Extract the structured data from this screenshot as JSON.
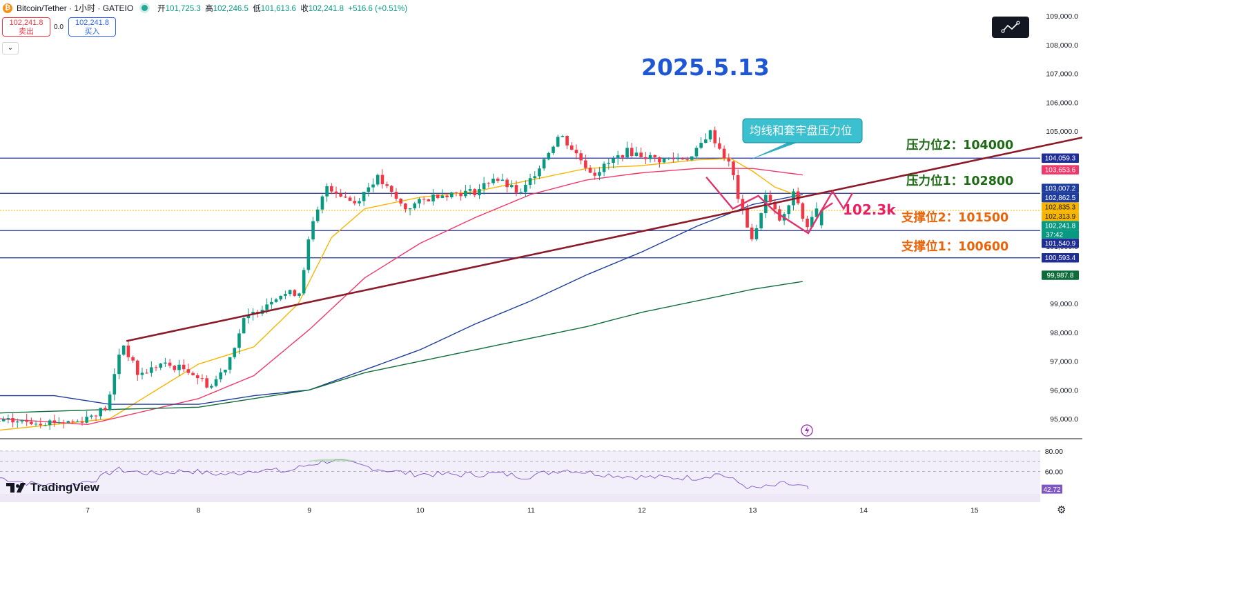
{
  "header": {
    "title": "Bitcoin/Tether · 1小时 · GATEIO",
    "open_label": "开",
    "open": "101,725.3",
    "high_label": "高",
    "high": "102,246.5",
    "low_label": "低",
    "low": "101,613.6",
    "close_label": "收",
    "close": "102,241.8",
    "change": "+516.6 (+0.51%)"
  },
  "trade": {
    "sell_price": "102,241.8",
    "sell_label": "卖出",
    "spread": "0.0",
    "buy_price": "102,241.8",
    "buy_label": "买入"
  },
  "collapse_icon": "chevron-down-icon",
  "drawing_tool_icon": "trend-line-icon",
  "brand": "TradingView",
  "colors": {
    "up": "#089981",
    "down": "#f23645",
    "ma_fast": "#f7b500",
    "ma_mid": "#f0386b",
    "ma_slow": "#1e3d9c",
    "ma_long": "#0e6b3b",
    "trendline": "#8b1a2a",
    "level_line": "#1f2d96",
    "rsi": "#7e57c2",
    "annotation_blue": "#1f56d6",
    "resistance_text": "#1e6b16",
    "support_text": "#e8650c",
    "target_text": "#e91e63"
  },
  "chart_data": {
    "type": "candlestick",
    "symbol": "Bitcoin/Tether",
    "interval": "1小时",
    "exchange": "GATEIO",
    "x_ticks": [
      "7",
      "8",
      "9",
      "10",
      "11",
      "12",
      "13",
      "14",
      "15"
    ],
    "y_ticks": [
      "95,000.0",
      "96,000.0",
      "97,000.0",
      "98,000.0",
      "99,000.0",
      "100,000.0",
      "101,000.0",
      "102,000.0",
      "103,000.0",
      "104,000.0",
      "105,000.0",
      "106,000.0",
      "107,000.0",
      "108,000.0",
      "109,000.0"
    ],
    "ylim": [
      94700,
      109500
    ],
    "xlim": [
      6.2,
      16.0
    ],
    "candle_anchors": [
      [
        6.2,
        94900
      ],
      [
        6.95,
        94900
      ],
      [
        7.22,
        95400
      ],
      [
        7.35,
        97700
      ],
      [
        7.5,
        96500
      ],
      [
        7.7,
        96900
      ],
      [
        7.95,
        96700
      ],
      [
        8.15,
        96100
      ],
      [
        8.3,
        96900
      ],
      [
        8.45,
        98400
      ],
      [
        8.75,
        99300
      ],
      [
        8.95,
        99400
      ],
      [
        9.05,
        101500
      ],
      [
        9.2,
        103100
      ],
      [
        9.45,
        102500
      ],
      [
        9.65,
        103400
      ],
      [
        9.9,
        102300
      ],
      [
        10.2,
        102800
      ],
      [
        10.55,
        102900
      ],
      [
        10.7,
        103400
      ],
      [
        10.95,
        102800
      ],
      [
        11.3,
        104900
      ],
      [
        11.6,
        103500
      ],
      [
        11.9,
        104300
      ],
      [
        12.2,
        104000
      ],
      [
        12.5,
        104100
      ],
      [
        12.65,
        105000
      ],
      [
        12.85,
        103700
      ],
      [
        12.92,
        102500
      ],
      [
        13.05,
        101100
      ],
      [
        13.15,
        102800
      ],
      [
        13.3,
        101800
      ],
      [
        13.42,
        102900
      ],
      [
        13.52,
        101600
      ],
      [
        13.62,
        102242
      ]
    ],
    "last_candle": {
      "x": 13.62,
      "open": 101725.3,
      "high": 102246.5,
      "low": 101613.6,
      "close": 102241.8
    },
    "moving_averages": [
      {
        "name": "ma_fast",
        "points": [
          [
            6.2,
            94600
          ],
          [
            7.2,
            95000
          ],
          [
            8.0,
            96900
          ],
          [
            8.5,
            97500
          ],
          [
            8.9,
            99000
          ],
          [
            9.2,
            101300
          ],
          [
            9.5,
            102300
          ],
          [
            10.0,
            102700
          ],
          [
            10.5,
            102900
          ],
          [
            11.0,
            103300
          ],
          [
            11.5,
            103700
          ],
          [
            12.0,
            103800
          ],
          [
            12.5,
            104000
          ],
          [
            12.8,
            104050
          ],
          [
            13.0,
            103600
          ],
          [
            13.2,
            103050
          ],
          [
            13.45,
            102700
          ],
          [
            13.5,
            102313
          ]
        ]
      },
      {
        "name": "ma_mid",
        "points": [
          [
            6.2,
            95000
          ],
          [
            7.0,
            94800
          ],
          [
            8.0,
            95700
          ],
          [
            8.5,
            96500
          ],
          [
            9.0,
            98100
          ],
          [
            9.5,
            99900
          ],
          [
            10.0,
            101100
          ],
          [
            10.5,
            102000
          ],
          [
            11.0,
            102800
          ],
          [
            11.5,
            103300
          ],
          [
            12.0,
            103550
          ],
          [
            12.5,
            103700
          ],
          [
            13.0,
            103700
          ],
          [
            13.5,
            103450
          ]
        ]
      },
      {
        "name": "ma_slow",
        "points": [
          [
            6.2,
            95800
          ],
          [
            6.7,
            95800
          ],
          [
            7.2,
            95500
          ],
          [
            8.0,
            95500
          ],
          [
            8.5,
            95800
          ],
          [
            9.0,
            96000
          ],
          [
            9.5,
            96700
          ],
          [
            10.0,
            97400
          ],
          [
            10.5,
            98300
          ],
          [
            11.0,
            99100
          ],
          [
            11.5,
            100000
          ],
          [
            12.0,
            100800
          ],
          [
            12.5,
            101700
          ],
          [
            13.0,
            102450
          ],
          [
            13.5,
            102830
          ]
        ]
      },
      {
        "name": "ma_long",
        "points": [
          [
            6.2,
            95200
          ],
          [
            7.0,
            95300
          ],
          [
            8.0,
            95400
          ],
          [
            8.5,
            95700
          ],
          [
            9.0,
            96000
          ],
          [
            9.5,
            96600
          ],
          [
            10.0,
            97000
          ],
          [
            10.5,
            97400
          ],
          [
            11.0,
            97800
          ],
          [
            11.5,
            98200
          ],
          [
            12.0,
            98700
          ],
          [
            12.5,
            99100
          ],
          [
            13.0,
            99500
          ],
          [
            13.5,
            99800
          ]
        ]
      }
    ],
    "trendline": [
      [
        7.35,
        97700
      ],
      [
        16.0,
        104800
      ]
    ],
    "horizontal_levels": [
      104059.3,
      102835.3,
      101540.9,
      100593.4
    ],
    "current_price_line": 102241.8,
    "zigzag_projection": [
      [
        12.58,
        103400
      ],
      [
        12.82,
        102300
      ],
      [
        13.05,
        102750
      ],
      [
        13.2,
        102200
      ],
      [
        13.5,
        101450
      ],
      [
        13.62,
        102242
      ],
      [
        13.72,
        102500
      ]
    ],
    "price_tags": [
      {
        "value": 104059.3,
        "text": "104,059.3",
        "bg": "#1f2d96"
      },
      {
        "value": 103653.6,
        "text": "103,653.6",
        "bg": "#f0386b"
      },
      {
        "value": 103007.2,
        "text": "103,007.2",
        "bg": "#1e3d9c"
      },
      {
        "value": 102862.5,
        "text": "102,862.5",
        "bg": "#1e3d9c"
      },
      {
        "value": 102835.3,
        "text": "102,835.3",
        "bg": "#f7b500"
      },
      {
        "value": 102313.9,
        "text": "102,313.9",
        "bg": "#f7b500"
      },
      {
        "value": 102241.8,
        "text": "102,241.8",
        "bg": "#089981"
      },
      {
        "value": 101540.9,
        "text": "101,540.9",
        "bg": "#1f2d96"
      },
      {
        "value": 100593.4,
        "text": "100,593.4",
        "bg": "#1f2d96"
      },
      {
        "value": 99987.8,
        "text": "99,987.8",
        "bg": "#0e6b3b"
      }
    ],
    "countdown": "37:42",
    "annotations": {
      "date": "2025.5.13",
      "callout": "均线和套牢盘压力位",
      "resistance_2": "压力位2：104000",
      "resistance_1": "压力位1：102800",
      "support_2": "支撑位2：101500",
      "support_1": "支撑位1：100600",
      "target": "102.3k"
    },
    "rsi": {
      "ylim": [
        34,
        86
      ],
      "y_ticks": [
        "80.00",
        "60.00"
      ],
      "upper": 70,
      "lower": 30,
      "current": "42.72",
      "anchors": [
        [
          6.2,
          54
        ],
        [
          6.5,
          48
        ],
        [
          6.8,
          46
        ],
        [
          7.1,
          53
        ],
        [
          7.25,
          62
        ],
        [
          7.4,
          60
        ],
        [
          7.6,
          58
        ],
        [
          7.9,
          61
        ],
        [
          8.1,
          58
        ],
        [
          8.3,
          57
        ],
        [
          8.5,
          62
        ],
        [
          8.8,
          60
        ],
        [
          9.0,
          67
        ],
        [
          9.2,
          71
        ],
        [
          9.4,
          67
        ],
        [
          9.6,
          63
        ],
        [
          9.9,
          58
        ],
        [
          10.2,
          57
        ],
        [
          10.5,
          57
        ],
        [
          10.7,
          58
        ],
        [
          10.95,
          55
        ],
        [
          11.3,
          62
        ],
        [
          11.6,
          58
        ],
        [
          11.9,
          55
        ],
        [
          12.2,
          54
        ],
        [
          12.5,
          54
        ],
        [
          12.7,
          58
        ],
        [
          12.85,
          50
        ],
        [
          13.0,
          43
        ],
        [
          13.15,
          45
        ],
        [
          13.3,
          48
        ],
        [
          13.45,
          45
        ],
        [
          13.5,
          42.72
        ]
      ]
    }
  }
}
